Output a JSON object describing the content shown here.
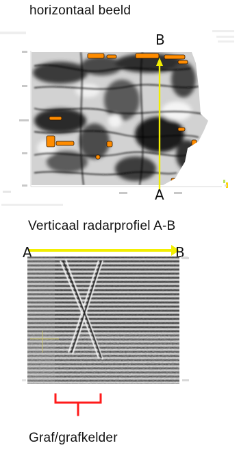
{
  "top_section": {
    "title": "horizontaal beeld",
    "label_top": "B",
    "label_bottom": "A"
  },
  "bottom_section": {
    "title": "Verticaal radarprofiel A-B",
    "label_left": "A",
    "label_right": "B"
  },
  "annotation": {
    "caption": "Graf/grafkelder",
    "bracket_color": "#ff1a1a"
  },
  "colors": {
    "profile_line": "#f2ee00",
    "anomaly": "#ff8c00"
  }
}
